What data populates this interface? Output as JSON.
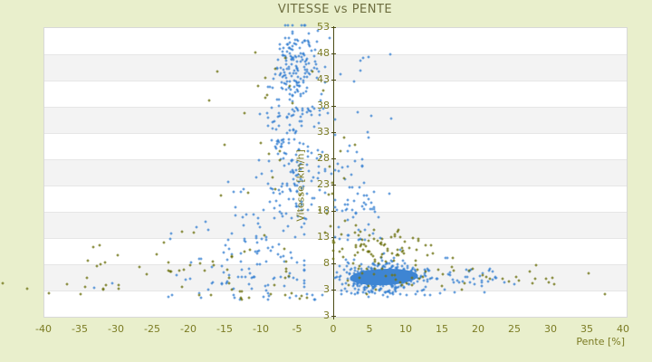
{
  "window": {
    "title": "VITESSE vs PENTE"
  },
  "colors": {
    "background": "#e9efcc",
    "title_text": "#6d6d3f",
    "tick_text": "#7b7b23",
    "axis_line": "#4b4b14",
    "plot_bg": "#ffffff",
    "band_gray": "#f3f3f3",
    "band_line": "#e6e6e6",
    "plot_border": "#d8d8d8",
    "series_blue": "#3e85d3",
    "series_olive": "#6f7414"
  },
  "chart_data": {
    "type": "scatter",
    "title": "VITESSE vs PENTE",
    "xlabel": "Pente [%]",
    "ylabel": "Vitesse [km/h]",
    "x_ticks": [
      -40,
      -35,
      -30,
      -25,
      -20,
      -15,
      -10,
      -5,
      0,
      5,
      10,
      15,
      20,
      25,
      30,
      35,
      40
    ],
    "y_tick_labels": [
      "53",
      "48",
      "43",
      "38",
      "33",
      "28",
      "23",
      "18",
      "13",
      "8",
      "3",
      "3"
    ],
    "x_range": [
      -40,
      40
    ],
    "y_range_ticks": [
      3,
      53
    ],
    "grid": "horizontal-bands",
    "legend": "none",
    "zero_axis": "vertical line at Pente = 0",
    "seed": 42,
    "marker": "plus-3px",
    "core_blob": {
      "note": "very dense solid cluster",
      "p_center": 7.0,
      "v_center": 5.4,
      "p_radius": 4.7,
      "v_radius": 1.55
    },
    "series": [
      {
        "name": "blue",
        "color": "#3e85d3",
        "clusters": [
          {
            "n": 170,
            "p": [
              "g",
              -5.2,
              1.7
            ],
            "pc": [
              -12,
              1
            ],
            "v": [
              "g",
              46,
              4
            ],
            "vc": [
              36,
              53.3
            ]
          },
          {
            "n": 90,
            "p": [
              "g",
              -5.6,
              2.1
            ],
            "pc": [
              -13,
              1
            ],
            "v": [
              "u",
              27,
              38
            ]
          },
          {
            "n": 70,
            "p": [
              "g",
              -5.2,
              2.6
            ],
            "pc": [
              -15,
              2
            ],
            "v": [
              "u",
              16,
              27
            ]
          },
          {
            "n": 95,
            "p": [
              "g",
              -11,
              5
            ],
            "pc": [
              -28,
              -4
            ],
            "v": [
              "u",
              3,
              16
            ]
          },
          {
            "n": 22,
            "p": [
              "g",
              -11,
              3.5
            ],
            "pc": [
              -20,
              -5
            ],
            "v": [
              "u",
              16,
              24
            ]
          },
          {
            "n": 45,
            "p": [
              "g",
              3.2,
              2.2
            ],
            "pc": [
              0.3,
              10
            ],
            "v": [
              "u",
              12,
              22
            ]
          },
          {
            "n": 20,
            "p": [
              "g",
              2.6,
              1.6
            ],
            "pc": [
              0.3,
              8
            ],
            "v": [
              "u",
              22,
              33
            ]
          },
          {
            "n": 8,
            "p": [
              "g",
              3,
              2
            ],
            "pc": [
              0.5,
              8
            ],
            "v": [
              "u",
              33,
              48
            ]
          },
          {
            "n": 260,
            "p": [
              "g",
              7,
              2.8
            ],
            "pc": [
              0.5,
              16
            ],
            "v": [
              "g",
              5.4,
              1.5
            ],
            "vc": [
              2.5,
              9
            ]
          },
          {
            "n": 70,
            "p": [
              "g",
              7,
              4.5
            ],
            "pc": [
              0.3,
              20
            ],
            "v": [
              "g",
              5.5,
              2.2
            ],
            "vc": [
              2,
              11
            ]
          },
          {
            "n": 26,
            "p": [
              "u",
              12,
              22
            ],
            "v": [
              "g",
              5,
              1.3
            ],
            "vc": [
              2.5,
              8
            ]
          },
          {
            "n": 10,
            "p": [
              "u",
              17,
              27
            ],
            "v": [
              "u",
              3.5,
              6.5
            ]
          },
          {
            "n": 26,
            "p": [
              "u",
              -24,
              6
            ],
            "v": [
              "u",
              1,
              3.2
            ]
          },
          {
            "n": 18,
            "p": [
              "u",
              1,
              14
            ],
            "v": [
              "u",
              1.5,
              3.2
            ]
          }
        ],
        "outliers": [
          [
            -30.5,
            4.2
          ],
          [
            -33,
            3.4
          ],
          [
            25,
            4
          ],
          [
            22,
            6.5
          ],
          [
            20.5,
            3.7
          ],
          [
            -0.5,
            51
          ],
          [
            1,
            44
          ],
          [
            3.8,
            46.7
          ],
          [
            2.3,
            30.4
          ]
        ]
      },
      {
        "name": "olive",
        "color": "#6f7414",
        "clusters": [
          {
            "n": 80,
            "p": [
              "g",
              6.5,
              3.5
            ],
            "pc": [
              0,
              16
            ],
            "v": [
              "g",
              10.8,
              2.0
            ],
            "vc": [
              7,
              16
            ]
          },
          {
            "n": 48,
            "p": [
              "u",
              -38,
              -6
            ],
            "v": [
              "g",
              7,
              3.5
            ],
            "vc": [
              2,
              15
            ]
          },
          {
            "n": 14,
            "p": [
              "u",
              -18,
              -2
            ],
            "v": [
              "u",
              16,
              46
            ]
          },
          {
            "n": 14,
            "p": [
              "g",
              0.5,
              1.2
            ],
            "v": [
              "u",
              13,
              34
            ]
          },
          {
            "n": 10,
            "p": [
              "g",
              -5.5,
              2.5
            ],
            "v": [
              "u",
              38,
              52
            ]
          },
          {
            "n": 22,
            "p": [
              "u",
              14,
              31
            ],
            "v": [
              "u",
              3.5,
              8
            ]
          },
          {
            "n": 20,
            "p": [
              "u",
              1,
              13
            ],
            "v": [
              "u",
              3,
              7
            ]
          },
          {
            "n": 12,
            "p": [
              "u",
              -20,
              8
            ],
            "v": [
              "u",
              1,
              3
            ]
          }
        ],
        "outliers": [
          [
            -45.6,
            4.2
          ],
          [
            -42.2,
            3.2
          ],
          [
            -39.2,
            2.3
          ],
          [
            -36.8,
            4.1
          ],
          [
            -34,
            5.2
          ],
          [
            37.5,
            2.1
          ],
          [
            35.3,
            6.1
          ],
          [
            30.2,
            5.3
          ],
          [
            23.4,
            5.0
          ],
          [
            17.8,
            3.0
          ],
          [
            -29.8,
            9.5
          ],
          [
            -31.5,
            8.2
          ],
          [
            16.5,
            9.0
          ],
          [
            11.8,
            12.6
          ]
        ]
      }
    ]
  }
}
